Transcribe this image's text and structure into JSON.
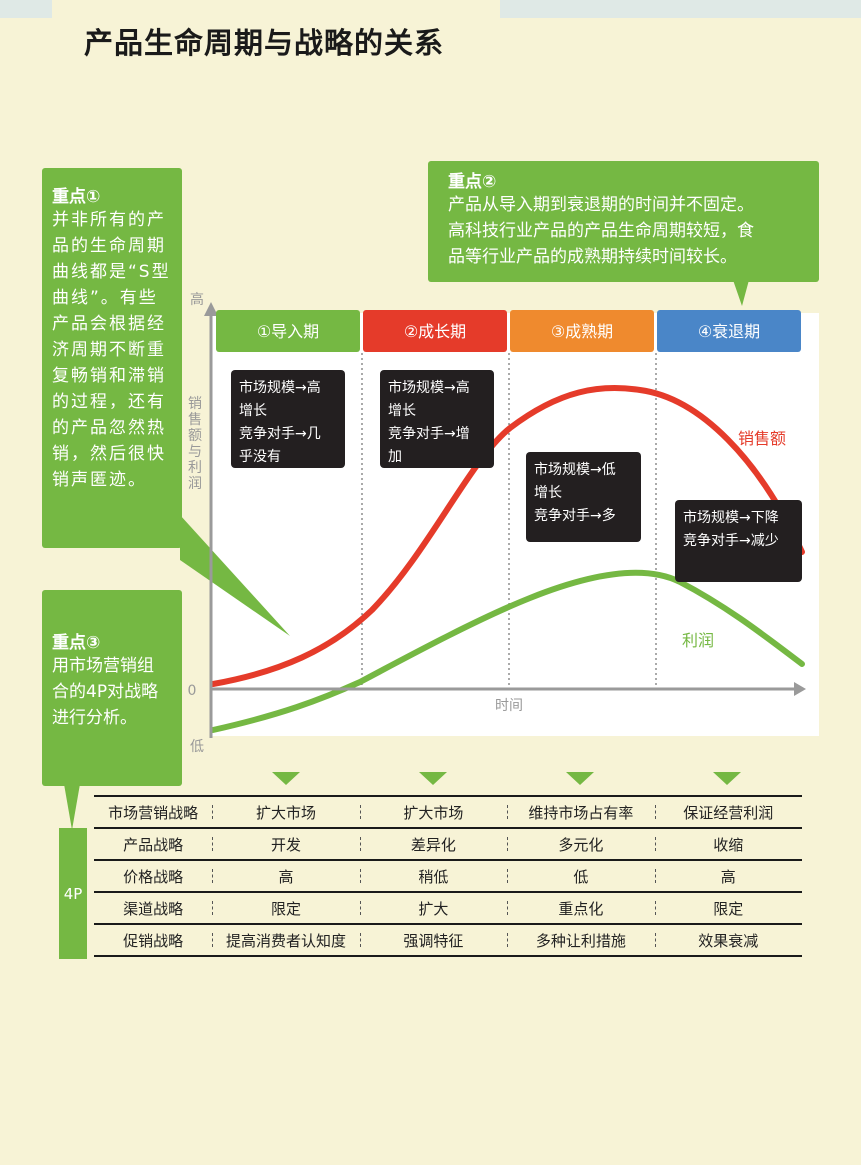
{
  "title": "产品生命周期与战略的关系",
  "colors": {
    "green": "#75b843",
    "red": "#e53b2a",
    "orange": "#ef8a2e",
    "blue": "#4a86c8",
    "dark_box": "#231f20",
    "background": "#f7f3d6"
  },
  "callouts": {
    "point1": {
      "head": "重点①",
      "lines": [
        "并非所有的产",
        "品的生命周期",
        "曲线都是“S型",
        "曲线”。有些",
        "产品会根据经",
        "济周期不断重",
        "复畅销和滞销",
        "的过程，还有",
        "的产品忽然热",
        "销，然后很快",
        "销声匿迹。"
      ]
    },
    "point2": {
      "head": "重点②",
      "lines": [
        "产品从导入期到衰退期的时间并不固定。",
        "高科技行业产品的产品生命周期较短，食",
        "品等行业产品的成熟期持续时间较长。"
      ]
    },
    "point3": {
      "head": "重点③",
      "lines": [
        "用市场营销组",
        "合的4P对战略",
        "进行分析。"
      ]
    }
  },
  "chart_data": {
    "type": "line",
    "y_axis": {
      "label": "销售额与利润",
      "top_label": "高",
      "zero_label": "0",
      "bottom_label": "低"
    },
    "x_axis": {
      "label": "时间"
    },
    "stages": [
      {
        "label": "①导入期",
        "color": "#75b843",
        "note": [
          "市场规模→高",
          "增长",
          "竞争对手→几",
          "乎没有"
        ]
      },
      {
        "label": "②成长期",
        "color": "#e53b2a",
        "note": [
          "市场规模→高",
          "增长",
          "竞争对手→增",
          "加"
        ]
      },
      {
        "label": "③成熟期",
        "color": "#ef8a2e",
        "note": [
          "市场规模→低",
          "增长",
          "竞争对手→多"
        ]
      },
      {
        "label": "④衰退期",
        "color": "#4a86c8",
        "note": [
          "市场规模→下降",
          "竞争对手→减少"
        ]
      }
    ],
    "series": [
      {
        "name": "销售额",
        "color": "#e53b2a"
      },
      {
        "name": "利润",
        "color": "#75b843"
      }
    ]
  },
  "table": {
    "side_label": "4P",
    "rows": [
      {
        "label": "市场营销战略",
        "values": [
          "扩大市场",
          "扩大市场",
          "维持市场占有率",
          "保证经营利润"
        ]
      },
      {
        "label": "产品战略",
        "values": [
          "开发",
          "差异化",
          "多元化",
          "收缩"
        ]
      },
      {
        "label": "价格战略",
        "values": [
          "高",
          "稍低",
          "低",
          "高"
        ]
      },
      {
        "label": "渠道战略",
        "values": [
          "限定",
          "扩大",
          "重点化",
          "限定"
        ]
      },
      {
        "label": "促销战略",
        "values": [
          "提高消费者认知度",
          "强调特征",
          "多种让利措施",
          "效果衰减"
        ]
      }
    ]
  }
}
